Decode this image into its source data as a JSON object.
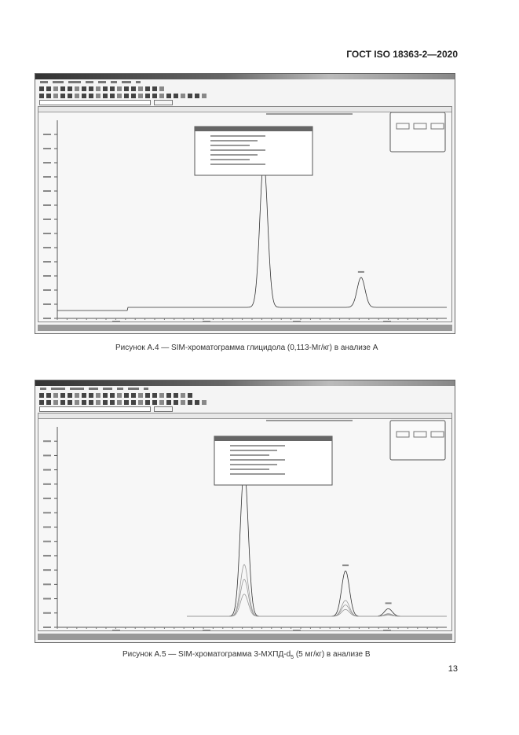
{
  "header": {
    "standard": "ГОСТ ISO 18363-2—2020"
  },
  "figures": [
    {
      "caption": "Рисунок А.4 — SIM-хроматограмма глицидола (0,113-Мг/кг) в анализе А",
      "peaks": [
        {
          "rt_rel": 0.53,
          "height_rel": 0.78
        },
        {
          "rt_rel": 0.78,
          "height_rel": 0.16
        }
      ]
    },
    {
      "caption_main": "Рисунок А.5 — SIM-хроматограмма 3-МХПД-d",
      "caption_sub": "5",
      "caption_tail": " (5 мг/кг) в анализе В",
      "peaks": [
        {
          "rt_rel": 0.48,
          "height_rel": 0.78
        },
        {
          "rt_rel": 0.74,
          "height_rel": 0.24
        },
        {
          "rt_rel": 0.85,
          "height_rel": 0.04
        }
      ]
    }
  ],
  "page_number": "13"
}
